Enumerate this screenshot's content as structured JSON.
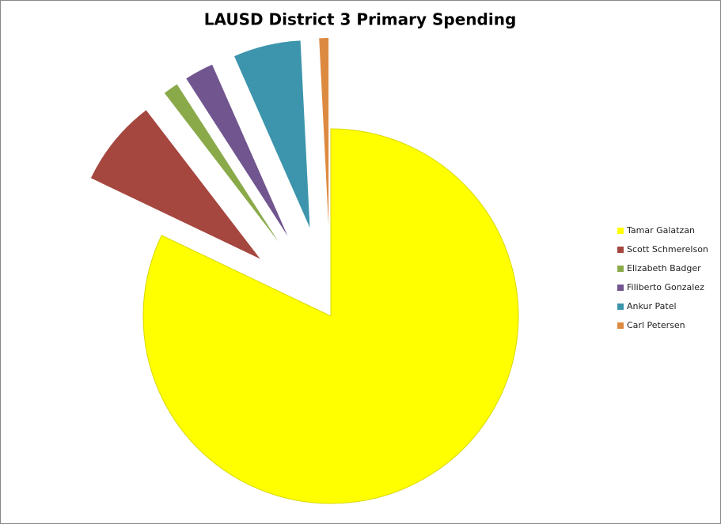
{
  "chart_data": {
    "type": "pie",
    "title": "LAUSD District 3 Primary Spending",
    "categories": [
      "Tamar Galatzan",
      "Scott Schmerelson",
      "Elizabeth Badger",
      "Filiberto Gonzalez",
      "Ankur Patel",
      "Carl Petersen"
    ],
    "values": [
      82.1,
      7.5,
      1.3,
      2.5,
      5.8,
      0.8
    ],
    "colors": [
      "#ffff00",
      "#a5463f",
      "#8aaa4a",
      "#71558f",
      "#3c95ac",
      "#dd8a41"
    ],
    "legend": "right"
  }
}
